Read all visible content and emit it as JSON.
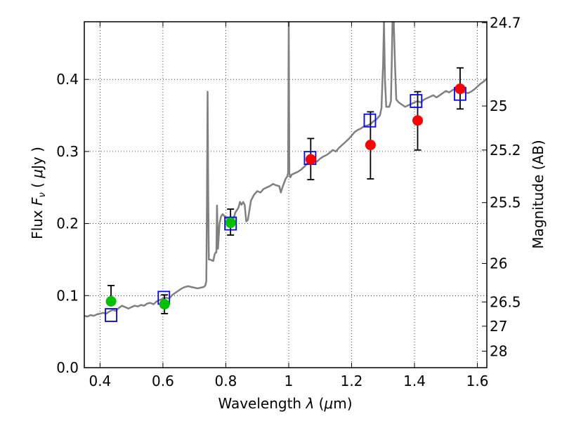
{
  "chart_data": {
    "type": "scatter",
    "xlabel": "Wavelength  λ (μm)",
    "ylabel": "Flux  F_ν  ( μJy )",
    "ylabel_parts": {
      "prefix": "Flux  ",
      "symbol": "F",
      "subscript": "ν",
      "open": "  ( ",
      "mu": "μ",
      "unit": "Jy )"
    },
    "xlabel_parts": {
      "prefix": "Wavelength  ",
      "symbol": "λ",
      "open": " (",
      "mu": "μ",
      "unit": "m)"
    },
    "y2label": "Magnitude (AB)",
    "xlim": [
      0.35,
      1.63
    ],
    "ylim": [
      0.0,
      0.48
    ],
    "grid": true,
    "x_ticks": [
      {
        "value": 0.4,
        "label": "0.4"
      },
      {
        "value": 0.6,
        "label": "0.6"
      },
      {
        "value": 0.8,
        "label": "0.8"
      },
      {
        "value": 1.0,
        "label": "1"
      },
      {
        "value": 1.2,
        "label": "1.2"
      },
      {
        "value": 1.4,
        "label": "1.4"
      },
      {
        "value": 1.6,
        "label": "1.6"
      }
    ],
    "y_ticks": [
      {
        "value": 0.0,
        "label": "0.0"
      },
      {
        "value": 0.1,
        "label": "0.1"
      },
      {
        "value": 0.2,
        "label": "0.2"
      },
      {
        "value": 0.3,
        "label": "0.3"
      },
      {
        "value": 0.4,
        "label": "0.4"
      }
    ],
    "mag_ticks": [
      {
        "value": 24.7,
        "label": "24.7"
      },
      {
        "value": 25.0,
        "label": "25"
      },
      {
        "value": 25.2,
        "label": "25.2"
      },
      {
        "value": 25.5,
        "label": "25.5"
      },
      {
        "value": 26.0,
        "label": "26"
      },
      {
        "value": 26.5,
        "label": "26.5"
      },
      {
        "value": 27.0,
        "label": "27"
      },
      {
        "value": 28.0,
        "label": "28"
      }
    ],
    "colors": {
      "spectrum": "#808080",
      "green_points": "#00c000",
      "red_points": "#ff0000",
      "model_boxes": "#0000ff",
      "errorbars": "#000000"
    },
    "spectrum": [
      [
        0.35,
        0.072
      ],
      [
        0.36,
        0.071
      ],
      [
        0.37,
        0.073
      ],
      [
        0.38,
        0.072
      ],
      [
        0.39,
        0.074
      ],
      [
        0.4,
        0.075
      ],
      [
        0.41,
        0.076
      ],
      [
        0.42,
        0.075
      ],
      [
        0.43,
        0.078
      ],
      [
        0.44,
        0.08
      ],
      [
        0.45,
        0.079
      ],
      [
        0.46,
        0.083
      ],
      [
        0.47,
        0.086
      ],
      [
        0.48,
        0.084
      ],
      [
        0.49,
        0.082
      ],
      [
        0.5,
        0.084
      ],
      [
        0.51,
        0.086
      ],
      [
        0.52,
        0.085
      ],
      [
        0.53,
        0.087
      ],
      [
        0.54,
        0.086
      ],
      [
        0.55,
        0.089
      ],
      [
        0.56,
        0.09
      ],
      [
        0.57,
        0.088
      ],
      [
        0.58,
        0.092
      ],
      [
        0.59,
        0.094
      ],
      [
        0.6,
        0.096
      ],
      [
        0.61,
        0.097
      ],
      [
        0.62,
        0.096
      ],
      [
        0.63,
        0.101
      ],
      [
        0.64,
        0.104
      ],
      [
        0.65,
        0.107
      ],
      [
        0.66,
        0.11
      ],
      [
        0.67,
        0.112
      ],
      [
        0.68,
        0.113
      ],
      [
        0.69,
        0.112
      ],
      [
        0.7,
        0.111
      ],
      [
        0.71,
        0.11
      ],
      [
        0.72,
        0.111
      ],
      [
        0.73,
        0.112
      ],
      [
        0.735,
        0.114
      ],
      [
        0.738,
        0.12
      ],
      [
        0.74,
        0.23
      ],
      [
        0.742,
        0.383
      ],
      [
        0.744,
        0.24
      ],
      [
        0.746,
        0.15
      ],
      [
        0.75,
        0.15
      ],
      [
        0.76,
        0.148
      ],
      [
        0.765,
        0.158
      ],
      [
        0.768,
        0.16
      ],
      [
        0.77,
        0.16
      ],
      [
        0.772,
        0.225
      ],
      [
        0.775,
        0.165
      ],
      [
        0.78,
        0.2
      ],
      [
        0.785,
        0.21
      ],
      [
        0.79,
        0.213
      ],
      [
        0.8,
        0.208
      ],
      [
        0.81,
        0.205
      ],
      [
        0.82,
        0.2
      ],
      [
        0.83,
        0.215
      ],
      [
        0.84,
        0.222
      ],
      [
        0.845,
        0.23
      ],
      [
        0.85,
        0.226
      ],
      [
        0.855,
        0.23
      ],
      [
        0.86,
        0.226
      ],
      [
        0.865,
        0.203
      ],
      [
        0.87,
        0.205
      ],
      [
        0.88,
        0.232
      ],
      [
        0.89,
        0.24
      ],
      [
        0.9,
        0.245
      ],
      [
        0.91,
        0.243
      ],
      [
        0.92,
        0.248
      ],
      [
        0.93,
        0.25
      ],
      [
        0.94,
        0.252
      ],
      [
        0.95,
        0.255
      ],
      [
        0.96,
        0.253
      ],
      [
        0.97,
        0.252
      ],
      [
        0.975,
        0.243
      ],
      [
        0.98,
        0.25
      ],
      [
        0.99,
        0.262
      ],
      [
        0.995,
        0.265
      ],
      [
        0.998,
        0.27
      ],
      [
        1.0,
        0.48
      ],
      [
        1.002,
        0.27
      ],
      [
        1.005,
        0.264
      ],
      [
        1.01,
        0.268
      ],
      [
        1.02,
        0.27
      ],
      [
        1.03,
        0.272
      ],
      [
        1.04,
        0.275
      ],
      [
        1.05,
        0.279
      ],
      [
        1.06,
        0.284
      ],
      [
        1.07,
        0.286
      ],
      [
        1.08,
        0.288
      ],
      [
        1.09,
        0.286
      ],
      [
        1.1,
        0.29
      ],
      [
        1.11,
        0.293
      ],
      [
        1.12,
        0.295
      ],
      [
        1.13,
        0.298
      ],
      [
        1.14,
        0.302
      ],
      [
        1.15,
        0.3
      ],
      [
        1.16,
        0.305
      ],
      [
        1.17,
        0.309
      ],
      [
        1.18,
        0.313
      ],
      [
        1.19,
        0.317
      ],
      [
        1.2,
        0.322
      ],
      [
        1.21,
        0.327
      ],
      [
        1.22,
        0.33
      ],
      [
        1.23,
        0.332
      ],
      [
        1.24,
        0.335
      ],
      [
        1.25,
        0.336
      ],
      [
        1.26,
        0.338
      ],
      [
        1.27,
        0.342
      ],
      [
        1.28,
        0.345
      ],
      [
        1.29,
        0.35
      ],
      [
        1.295,
        0.36
      ],
      [
        1.3,
        0.42
      ],
      [
        1.303,
        0.48
      ],
      [
        1.306,
        0.4
      ],
      [
        1.31,
        0.362
      ],
      [
        1.32,
        0.362
      ],
      [
        1.325,
        0.37
      ],
      [
        1.328,
        0.43
      ],
      [
        1.33,
        0.48
      ],
      [
        1.334,
        0.48
      ],
      [
        1.338,
        0.42
      ],
      [
        1.342,
        0.372
      ],
      [
        1.35,
        0.368
      ],
      [
        1.36,
        0.365
      ],
      [
        1.37,
        0.362
      ],
      [
        1.38,
        0.364
      ],
      [
        1.39,
        0.366
      ],
      [
        1.4,
        0.368
      ],
      [
        1.41,
        0.37
      ],
      [
        1.42,
        0.368
      ],
      [
        1.43,
        0.372
      ],
      [
        1.44,
        0.374
      ],
      [
        1.45,
        0.376
      ],
      [
        1.46,
        0.378
      ],
      [
        1.47,
        0.375
      ],
      [
        1.48,
        0.378
      ],
      [
        1.49,
        0.381
      ],
      [
        1.5,
        0.384
      ],
      [
        1.51,
        0.382
      ],
      [
        1.52,
        0.385
      ],
      [
        1.53,
        0.387
      ],
      [
        1.54,
        0.385
      ],
      [
        1.55,
        0.383
      ],
      [
        1.56,
        0.382
      ],
      [
        1.57,
        0.381
      ],
      [
        1.58,
        0.383
      ],
      [
        1.59,
        0.386
      ],
      [
        1.6,
        0.39
      ],
      [
        1.61,
        0.394
      ],
      [
        1.62,
        0.397
      ],
      [
        1.63,
        0.401
      ]
    ],
    "observed_green": [
      {
        "x": 0.435,
        "y": 0.092,
        "yerr_low": 0.0,
        "yerr_high": 0.022
      },
      {
        "x": 0.605,
        "y": 0.088,
        "yerr_low": 0.013,
        "yerr_high": 0.013
      },
      {
        "x": 0.815,
        "y": 0.201,
        "yerr_low": 0.017,
        "yerr_high": 0.019
      }
    ],
    "observed_red": [
      {
        "x": 1.07,
        "y": 0.289,
        "yerr_low": 0.028,
        "yerr_high": 0.029
      },
      {
        "x": 1.26,
        "y": 0.309,
        "yerr_low": 0.047,
        "yerr_high": 0.046
      },
      {
        "x": 1.41,
        "y": 0.343,
        "yerr_low": 0.041,
        "yerr_high": 0.04
      },
      {
        "x": 1.545,
        "y": 0.387,
        "yerr_low": 0.028,
        "yerr_high": 0.029
      }
    ],
    "model_points": [
      {
        "x": 0.435,
        "y": 0.073
      },
      {
        "x": 0.603,
        "y": 0.097
      },
      {
        "x": 0.815,
        "y": 0.2
      },
      {
        "x": 1.068,
        "y": 0.291
      },
      {
        "x": 1.258,
        "y": 0.343
      },
      {
        "x": 1.405,
        "y": 0.37
      },
      {
        "x": 1.545,
        "y": 0.38
      }
    ]
  }
}
